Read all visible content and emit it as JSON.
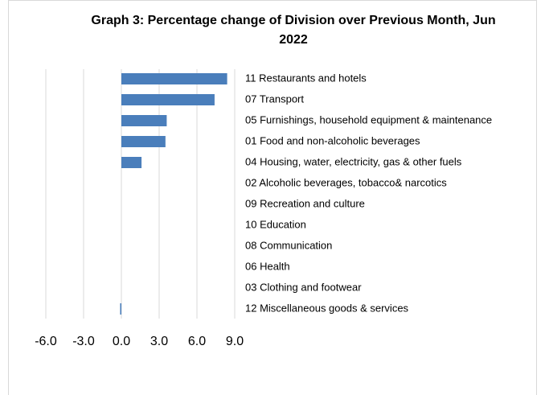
{
  "chart_data": {
    "type": "barh",
    "title": "Graph 3: Percentage change of Division over Previous Month, Jun 2022",
    "categories": [
      "11 Restaurants and hotels",
      "07 Transport",
      "05 Furnishings, household equipment & maintenance",
      "01 Food and non-alcoholic beverages",
      "04 Housing, water, electricity, gas & other fuels",
      "02 Alcoholic beverages, tobacco& narcotics",
      "09 Recreation and culture",
      "10 Education",
      "08 Communication",
      "06 Health",
      "03 Clothing and footwear",
      "12 Miscellaneous goods & services"
    ],
    "values": [
      8.4,
      7.4,
      3.6,
      3.5,
      1.6,
      0,
      0,
      0,
      0,
      0,
      0,
      -0.1
    ],
    "color": "#4a7ebb",
    "xlim": [
      -6,
      9
    ],
    "xticks": [
      {
        "value": -6,
        "label": "-6.0"
      },
      {
        "value": -3,
        "label": "-3.0"
      },
      {
        "value": 0,
        "label": "0.0"
      },
      {
        "value": 3,
        "label": "3.0"
      },
      {
        "value": 6,
        "label": "6.0"
      },
      {
        "value": 9,
        "label": "9.0"
      }
    ],
    "grid": true
  }
}
